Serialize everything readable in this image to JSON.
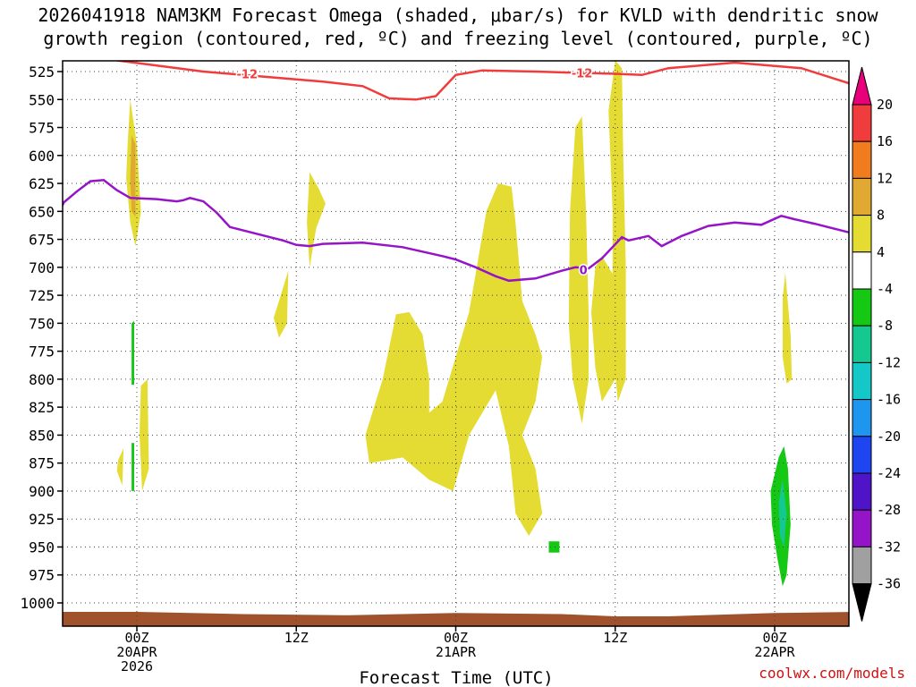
{
  "chart_data": {
    "type": "time-height cross section",
    "title_line1": "2026041918 NAM3KM Forecast Omega (shaded, μbar/s) for KVLD with dendritic snow",
    "title_line2": "growth region (contoured, red, ºC) and freezing level (contoured, purple, ºC)",
    "xlabel": "Forecast Time (UTC)",
    "credit": "coolwx.com/models",
    "xlim_hours": [
      -6,
      54
    ],
    "ylim_mb": [
      525,
      1020
    ],
    "y_ticks": [
      525,
      550,
      575,
      600,
      625,
      650,
      675,
      700,
      725,
      750,
      775,
      800,
      825,
      850,
      875,
      900,
      925,
      950,
      975,
      1000
    ],
    "x_ticks": [
      {
        "hour": 0,
        "lines": [
          "00Z",
          "20APR",
          "2026"
        ]
      },
      {
        "hour": 12,
        "lines": [
          "12Z"
        ]
      },
      {
        "hour": 24,
        "lines": [
          "00Z",
          "21APR"
        ]
      },
      {
        "hour": 36,
        "lines": [
          "12Z"
        ]
      },
      {
        "hour": 48,
        "lines": [
          "00Z",
          "22APR"
        ]
      }
    ],
    "colorbar": {
      "labels": [
        "20",
        "16",
        "12",
        "8",
        "4",
        "-4",
        "-8",
        "-12",
        "-16",
        "-20",
        "-24",
        "-28",
        "-32",
        "-36"
      ],
      "colors": [
        "#e8007a",
        "#f03c3c",
        "#f07c1e",
        "#e0aa32",
        "#e4dc32",
        "#ffffff",
        "#14c814",
        "#14c890",
        "#14c8c8",
        "#1e96f0",
        "#1e46f0",
        "#5014c8",
        "#9614c8",
        "#a0a0a0",
        "#000000"
      ]
    },
    "colors": {
      "dgz_contour": "#f03c3c",
      "freezing_level": "#9614c8",
      "terrain": "#a0522d"
    },
    "dgz_contour": {
      "label": "-12",
      "points": [
        [
          -1.5,
          515
        ],
        [
          5,
          525
        ],
        [
          10,
          530
        ],
        [
          14,
          534
        ],
        [
          17,
          538
        ],
        [
          19,
          549
        ],
        [
          21,
          550
        ],
        [
          22.5,
          547
        ],
        [
          24,
          528
        ],
        [
          26,
          524
        ],
        [
          30,
          525
        ],
        [
          33,
          526
        ],
        [
          36,
          527
        ],
        [
          38,
          528
        ],
        [
          40,
          522
        ],
        [
          45,
          517
        ],
        [
          50,
          522
        ],
        [
          54,
          537
        ]
      ]
    },
    "freezing_level": {
      "label": "0",
      "points": [
        [
          -6,
          655
        ],
        [
          -5.5,
          642
        ],
        [
          -4.5,
          632
        ],
        [
          -3.5,
          623
        ],
        [
          -2.5,
          622
        ],
        [
          -1.5,
          631
        ],
        [
          -0.5,
          638
        ],
        [
          1.5,
          639
        ],
        [
          3,
          641
        ],
        [
          3.5,
          640
        ],
        [
          4,
          638
        ],
        [
          5,
          641
        ],
        [
          6,
          651
        ],
        [
          7,
          664
        ],
        [
          9,
          670
        ],
        [
          11,
          676
        ],
        [
          12,
          680
        ],
        [
          13,
          681
        ],
        [
          14,
          679
        ],
        [
          17,
          678
        ],
        [
          20,
          682
        ],
        [
          23,
          690
        ],
        [
          24,
          693
        ],
        [
          25.5,
          700
        ],
        [
          27,
          708
        ],
        [
          28,
          712
        ],
        [
          30,
          710
        ],
        [
          32,
          703
        ],
        [
          33,
          700
        ],
        [
          34,
          701
        ],
        [
          35,
          692
        ],
        [
          36.5,
          673
        ],
        [
          37,
          676
        ],
        [
          38.5,
          672
        ],
        [
          39.5,
          681
        ],
        [
          41,
          672
        ],
        [
          43,
          663
        ],
        [
          45,
          660
        ],
        [
          47,
          662
        ],
        [
          48.5,
          654
        ],
        [
          49.5,
          657
        ],
        [
          51,
          661
        ],
        [
          54,
          670
        ]
      ]
    },
    "omega_regions": [
      {
        "category": "4",
        "points": [
          [
            -0.7,
            591
          ],
          [
            -0.5,
            550
          ],
          [
            0,
            590
          ],
          [
            0.3,
            650
          ],
          [
            -0.1,
            681
          ],
          [
            -0.5,
            660
          ],
          [
            -0.8,
            620
          ]
        ]
      },
      {
        "category": "8",
        "points": [
          [
            -0.4,
            582
          ],
          [
            -0.1,
            590
          ],
          [
            -0.1,
            655
          ],
          [
            -0.4,
            650
          ],
          [
            -0.5,
            620
          ]
        ]
      },
      {
        "category": "4",
        "points": [
          [
            -1.4,
            872
          ],
          [
            -1.0,
            862
          ],
          [
            -1.1,
            895
          ],
          [
            -1.5,
            882
          ]
        ]
      },
      {
        "category": "4",
        "points": [
          [
            0.3,
            806
          ],
          [
            0.8,
            800
          ],
          [
            0.9,
            880
          ],
          [
            0.4,
            900
          ],
          [
            0.2,
            850
          ]
        ]
      },
      {
        "category": "4",
        "points": [
          [
            10.7,
            730
          ],
          [
            11.4,
            703
          ],
          [
            11.3,
            750
          ],
          [
            10.7,
            763
          ],
          [
            10.3,
            745
          ]
        ]
      },
      {
        "category": "4",
        "points": [
          [
            13.0,
            615
          ],
          [
            13.7,
            630
          ],
          [
            14.2,
            643
          ],
          [
            13.5,
            665
          ],
          [
            13.0,
            700
          ],
          [
            12.8,
            660
          ]
        ]
      },
      {
        "category": "4",
        "points": [
          [
            17.2,
            850
          ],
          [
            18.5,
            800
          ],
          [
            19.5,
            742
          ],
          [
            20.5,
            740
          ],
          [
            21.5,
            760
          ],
          [
            22,
            800
          ],
          [
            22,
            830
          ],
          [
            23,
            820
          ],
          [
            25,
            740
          ],
          [
            26.3,
            650
          ],
          [
            27.2,
            625
          ],
          [
            28.2,
            628
          ],
          [
            28.5,
            660
          ],
          [
            29,
            730
          ],
          [
            30,
            760
          ],
          [
            30.5,
            780
          ],
          [
            30,
            820
          ],
          [
            29,
            850
          ],
          [
            30,
            880
          ],
          [
            30.5,
            920
          ],
          [
            29.5,
            940
          ],
          [
            28.5,
            920
          ],
          [
            28,
            860
          ],
          [
            27,
            810
          ],
          [
            25,
            850
          ],
          [
            23.8,
            900
          ],
          [
            22,
            890
          ],
          [
            20,
            870
          ],
          [
            17.5,
            875
          ]
        ]
      },
      {
        "category": "4",
        "points": [
          [
            33.0,
            575
          ],
          [
            33.5,
            565
          ],
          [
            33.8,
            650
          ],
          [
            34.0,
            740
          ],
          [
            34,
            800
          ],
          [
            33.5,
            840
          ],
          [
            32.8,
            800
          ],
          [
            32.5,
            750
          ],
          [
            32.6,
            650
          ]
        ]
      },
      {
        "category": "4",
        "points": [
          [
            34.5,
            700
          ],
          [
            35.0,
            690
          ],
          [
            36,
            710
          ],
          [
            36.5,
            740
          ],
          [
            36.5,
            790
          ],
          [
            35.0,
            820
          ],
          [
            34.5,
            790
          ],
          [
            34.2,
            740
          ]
        ]
      },
      {
        "category": "4",
        "points": [
          [
            36.0,
            515
          ],
          [
            36.5,
            522
          ],
          [
            36.6,
            600
          ],
          [
            36.8,
            700
          ],
          [
            36.8,
            800
          ],
          [
            36.2,
            820
          ],
          [
            35.8,
            770
          ],
          [
            35.8,
            650
          ],
          [
            35.5,
            560
          ]
        ]
      },
      {
        "category": "4",
        "points": [
          [
            48.6,
            728
          ],
          [
            48.8,
            705
          ],
          [
            49.2,
            760
          ],
          [
            49.3,
            800
          ],
          [
            48.9,
            804
          ],
          [
            48.6,
            780
          ]
        ]
      }
    ],
    "omega_negative_regions": [
      {
        "category": "-4",
        "points": [
          [
            47.7,
            900
          ],
          [
            48.3,
            870
          ],
          [
            48.7,
            860
          ],
          [
            49.0,
            880
          ],
          [
            49.2,
            930
          ],
          [
            48.9,
            975
          ],
          [
            48.6,
            985
          ],
          [
            48.2,
            960
          ],
          [
            47.8,
            930
          ]
        ]
      },
      {
        "category": "-8",
        "points": [
          [
            48.3,
            910
          ],
          [
            48.6,
            890
          ],
          [
            48.9,
            920
          ],
          [
            48.7,
            950
          ],
          [
            48.4,
            940
          ]
        ]
      },
      {
        "category": "-4",
        "points": [
          [
            -0.4,
            750
          ],
          [
            -0.2,
            748
          ],
          [
            -0.2,
            805
          ],
          [
            -0.4,
            805
          ]
        ]
      },
      {
        "category": "-4",
        "points": [
          [
            -0.4,
            857
          ],
          [
            -0.2,
            857
          ],
          [
            -0.2,
            900
          ],
          [
            -0.4,
            900
          ]
        ]
      },
      {
        "category": "-4",
        "points": [
          [
            31.0,
            945
          ],
          [
            31.8,
            945
          ],
          [
            31.8,
            955
          ],
          [
            31.0,
            955
          ]
        ]
      },
      {
        "category": "-4",
        "points": [
          [
            53.9,
            555
          ],
          [
            54,
            550
          ],
          [
            54,
            580
          ],
          [
            53.9,
            575
          ]
        ]
      },
      {
        "category": "-4",
        "points": [
          [
            33.6,
            525
          ],
          [
            33.8,
            522
          ],
          [
            33.8,
            530
          ],
          [
            33.6,
            532
          ]
        ]
      }
    ],
    "terrain_top_mb": [
      [
        -6,
        1008
      ],
      [
        0,
        1008
      ],
      [
        8,
        1010
      ],
      [
        16,
        1011
      ],
      [
        24,
        1009
      ],
      [
        32,
        1010
      ],
      [
        36,
        1012
      ],
      [
        40,
        1012
      ],
      [
        48,
        1009
      ],
      [
        54,
        1008
      ]
    ]
  }
}
